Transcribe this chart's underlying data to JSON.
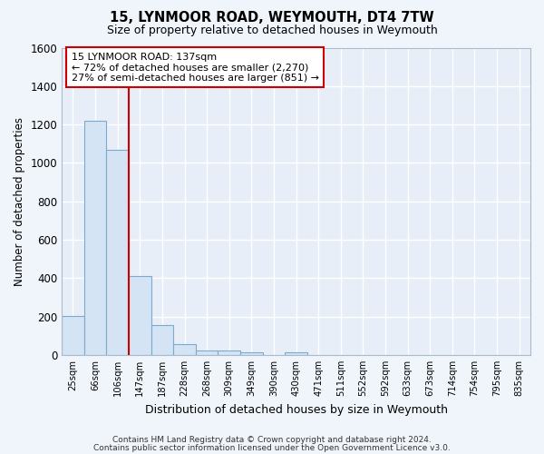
{
  "title1": "15, LYNMOOR ROAD, WEYMOUTH, DT4 7TW",
  "title2": "Size of property relative to detached houses in Weymouth",
  "xlabel": "Distribution of detached houses by size in Weymouth",
  "ylabel": "Number of detached properties",
  "footer1": "Contains HM Land Registry data © Crown copyright and database right 2024.",
  "footer2": "Contains public sector information licensed under the Open Government Licence v3.0.",
  "categories": [
    "25sqm",
    "66sqm",
    "106sqm",
    "147sqm",
    "187sqm",
    "228sqm",
    "268sqm",
    "309sqm",
    "349sqm",
    "390sqm",
    "430sqm",
    "471sqm",
    "511sqm",
    "552sqm",
    "592sqm",
    "633sqm",
    "673sqm",
    "714sqm",
    "754sqm",
    "795sqm",
    "835sqm"
  ],
  "values": [
    205,
    1220,
    1070,
    410,
    158,
    55,
    25,
    22,
    15,
    0,
    15,
    0,
    0,
    0,
    0,
    0,
    0,
    0,
    0,
    0,
    0
  ],
  "bar_color": "#d4e4f4",
  "bar_edge_color": "#7aabce",
  "ylim": [
    0,
    1600
  ],
  "yticks": [
    0,
    200,
    400,
    600,
    800,
    1000,
    1200,
    1400,
    1600
  ],
  "vline_x": 3.0,
  "vline_color": "#cc0000",
  "annotation_text": "15 LYNMOOR ROAD: 137sqm\n← 72% of detached houses are smaller (2,270)\n27% of semi-detached houses are larger (851) →",
  "background_color": "#f0f4fb",
  "grid_color": "#dde4ef",
  "plot_bg_color": "#e8eef8"
}
